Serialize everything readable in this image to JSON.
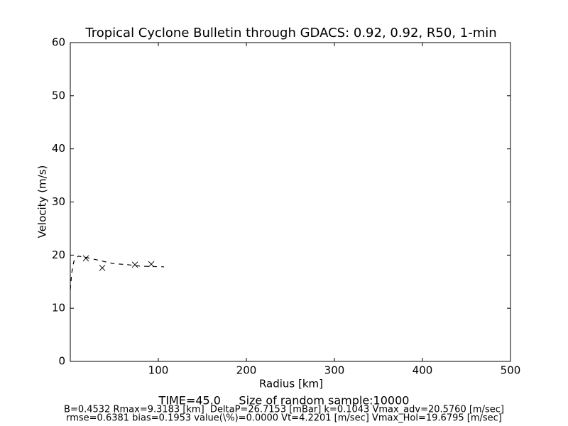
{
  "chart_data": {
    "type": "line",
    "title": "Tropical Cyclone Bulletin through GDACS: 0.92, 0.92, R50, 1-min",
    "x_label": "Radius [km]",
    "y_label": "Velocity (m/s)",
    "xlim": [
      0,
      500
    ],
    "xticks": [
      100,
      200,
      300,
      400,
      500
    ],
    "ylim": [
      0,
      60
    ],
    "yticks": [
      0,
      10,
      20,
      30,
      40,
      50,
      60
    ],
    "grid": false,
    "series": [
      {
        "type": "line",
        "style": "dashed",
        "color": "#000000",
        "x": [
          0,
          1.6,
          4,
          8.9,
          16.9,
          33,
          49,
          65,
          81.5,
          106.5
        ],
        "values": [
          13.5,
          16.6,
          18.8,
          19.8,
          19.6,
          19.0,
          18.4,
          18.2,
          17.9,
          17.8
        ]
      },
      {
        "type": "scatter",
        "marker": "x",
        "color": "#000000",
        "x": [
          17.7,
          36.3,
          73.4,
          92
        ],
        "values": [
          19.4,
          17.6,
          18.2,
          18.3
        ]
      }
    ],
    "annotations": [
      "TIME=45.0     Size of random sample:10000",
      "B=0.4532 Rmax=9.3183 [km]  DeltaP=26.7153 [mBar] k=0.1043 Vmax_adv=20.5760 [m/sec]",
      "rmse=0.6381 bias=0.1953 value(\\%)=0.0000 Vt=4.2201 [m/sec] Vmax_Hol=19.6795 [m/sec]"
    ]
  }
}
